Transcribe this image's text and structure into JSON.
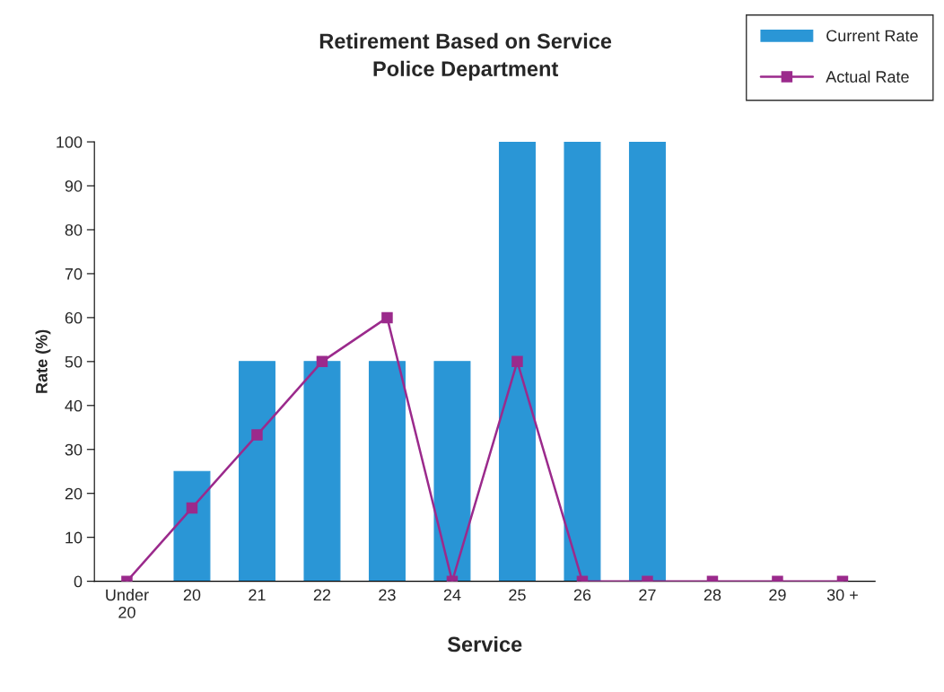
{
  "chart_data": {
    "type": "bar",
    "title": "Retirement Based on Service",
    "subtitle": "Police Department",
    "xlabel": "Service",
    "ylabel": "Rate (%)",
    "categories": [
      "Under\n20",
      "20",
      "21",
      "22",
      "23",
      "24",
      "25",
      "26",
      "27",
      "28",
      "29",
      "30 +"
    ],
    "series": [
      {
        "name": "Current Rate",
        "color": "#2a96d6",
        "values": [
          0,
          25,
          50,
          50,
          50,
          50,
          100,
          100,
          100,
          0,
          0,
          0
        ]
      },
      {
        "name": "Actual Rate",
        "type": "line",
        "color": "#9b2a8c",
        "marker": "square",
        "values": [
          0,
          16.7,
          33.3,
          50,
          60,
          0,
          50,
          0,
          0,
          0,
          0,
          0
        ]
      }
    ],
    "ylim": [
      0,
      100
    ],
    "yticks": [
      0,
      10,
      20,
      30,
      40,
      50,
      60,
      70,
      80,
      90,
      100
    ],
    "grid": false,
    "legend": "top right"
  }
}
